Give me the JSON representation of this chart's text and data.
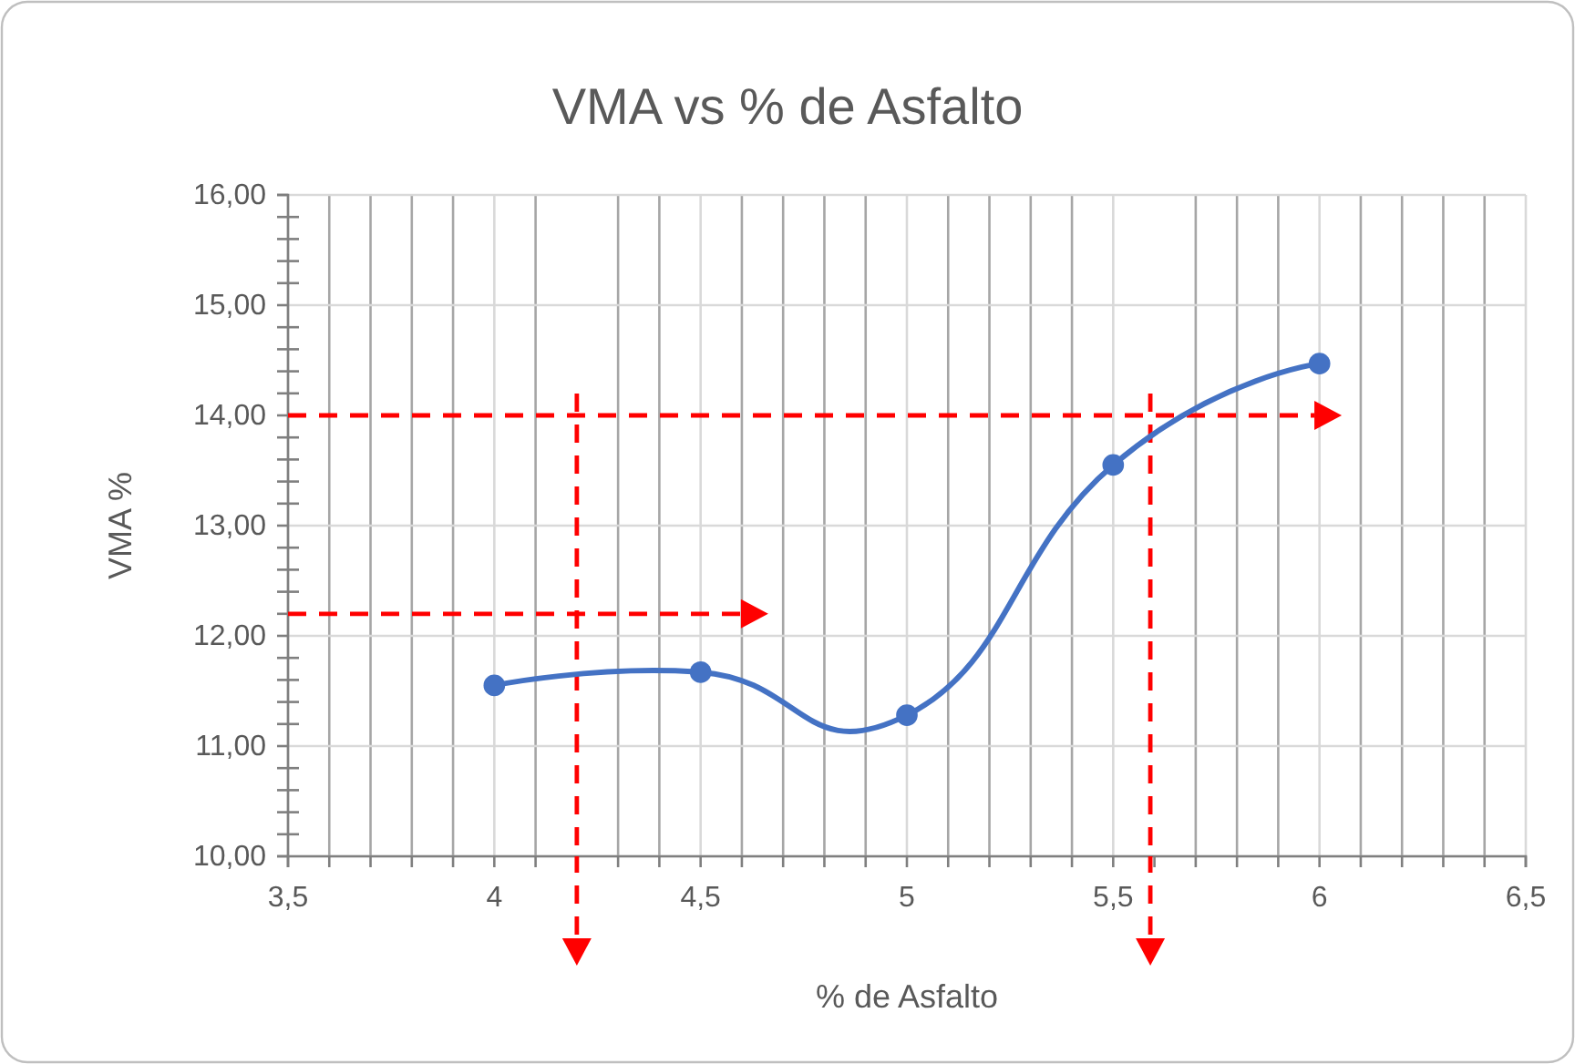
{
  "chart_data": {
    "type": "line",
    "title": "VMA vs % de Asfalto",
    "xlabel": "% de Asfalto",
    "ylabel": "VMA %",
    "x": [
      4,
      4.5,
      5,
      5.5,
      6
    ],
    "series": [
      {
        "color": "#4472c4",
        "values": [
          11.55,
          11.67,
          11.28,
          13.55,
          14.47
        ]
      }
    ],
    "marker": "circle",
    "line_style": "solid",
    "grid": true,
    "xlim": [
      3.5,
      6.5
    ],
    "xticks": [
      {
        "value": 3.5,
        "label": "3,5"
      },
      {
        "value": 3.6,
        "label": null
      },
      {
        "value": 3.7,
        "label": null
      },
      {
        "value": 3.8,
        "label": null
      },
      {
        "value": 3.9,
        "label": null
      },
      {
        "value": 4,
        "label": "4"
      },
      {
        "value": 4.1,
        "label": null
      },
      {
        "value": 4.2,
        "label": null
      },
      {
        "value": 4.3,
        "label": null
      },
      {
        "value": 4.4,
        "label": null
      },
      {
        "value": 4.5,
        "label": "4,5"
      },
      {
        "value": 4.6,
        "label": null
      },
      {
        "value": 4.7,
        "label": null
      },
      {
        "value": 4.8,
        "label": null
      },
      {
        "value": 4.9,
        "label": null
      },
      {
        "value": 5,
        "label": "5"
      },
      {
        "value": 5.1,
        "label": null
      },
      {
        "value": 5.2,
        "label": null
      },
      {
        "value": 5.3,
        "label": null
      },
      {
        "value": 5.4,
        "label": null
      },
      {
        "value": 5.5,
        "label": "5,5"
      },
      {
        "value": 5.6,
        "label": null
      },
      {
        "value": 5.7,
        "label": null
      },
      {
        "value": 5.8,
        "label": null
      },
      {
        "value": 5.9,
        "label": null
      },
      {
        "value": 6,
        "label": "6"
      },
      {
        "value": 6.1,
        "label": null
      },
      {
        "value": 6.2,
        "label": null
      },
      {
        "value": 6.3,
        "label": null
      },
      {
        "value": 6.4,
        "label": null
      },
      {
        "value": 6.5,
        "label": "6,5"
      }
    ],
    "ylim": [
      10,
      16
    ],
    "yticks": [
      {
        "value": 10,
        "label": "10,00"
      },
      {
        "value": 10.2,
        "label": null
      },
      {
        "value": 10.4,
        "label": null
      },
      {
        "value": 10.6,
        "label": null
      },
      {
        "value": 10.8,
        "label": null
      },
      {
        "value": 11,
        "label": "11,00"
      },
      {
        "value": 11.2,
        "label": null
      },
      {
        "value": 11.4,
        "label": null
      },
      {
        "value": 11.6,
        "label": null
      },
      {
        "value": 11.8,
        "label": null
      },
      {
        "value": 12,
        "label": "12,00"
      },
      {
        "value": 12.2,
        "label": null
      },
      {
        "value": 12.4,
        "label": null
      },
      {
        "value": 12.6,
        "label": null
      },
      {
        "value": 12.8,
        "label": null
      },
      {
        "value": 13,
        "label": "13,00"
      },
      {
        "value": 13.2,
        "label": null
      },
      {
        "value": 13.4,
        "label": null
      },
      {
        "value": 13.6,
        "label": null
      },
      {
        "value": 13.8,
        "label": null
      },
      {
        "value": 14,
        "label": "14,00"
      },
      {
        "value": 14.2,
        "label": null
      },
      {
        "value": 14.4,
        "label": null
      },
      {
        "value": 14.6,
        "label": null
      },
      {
        "value": 14.8,
        "label": null
      },
      {
        "value": 15,
        "label": "15,00"
      },
      {
        "value": 15.2,
        "label": null
      },
      {
        "value": 15.4,
        "label": null
      },
      {
        "value": 15.6,
        "label": null
      },
      {
        "value": 15.8,
        "label": null
      },
      {
        "value": 16,
        "label": "16,00"
      }
    ],
    "ref_lines": [
      {
        "axis": "y",
        "value": 12.2,
        "color": "#ff0000",
        "line_style": "dashed"
      },
      {
        "axis": "y",
        "value": 14.0,
        "color": "#ff0000",
        "line_style": "dashed"
      },
      {
        "axis": "x",
        "value": 4.2,
        "color": "#ff0000",
        "line_style": "dashed"
      },
      {
        "axis": "x",
        "value": 5.59,
        "color": "#ff0000",
        "line_style": "dashed"
      }
    ]
  }
}
